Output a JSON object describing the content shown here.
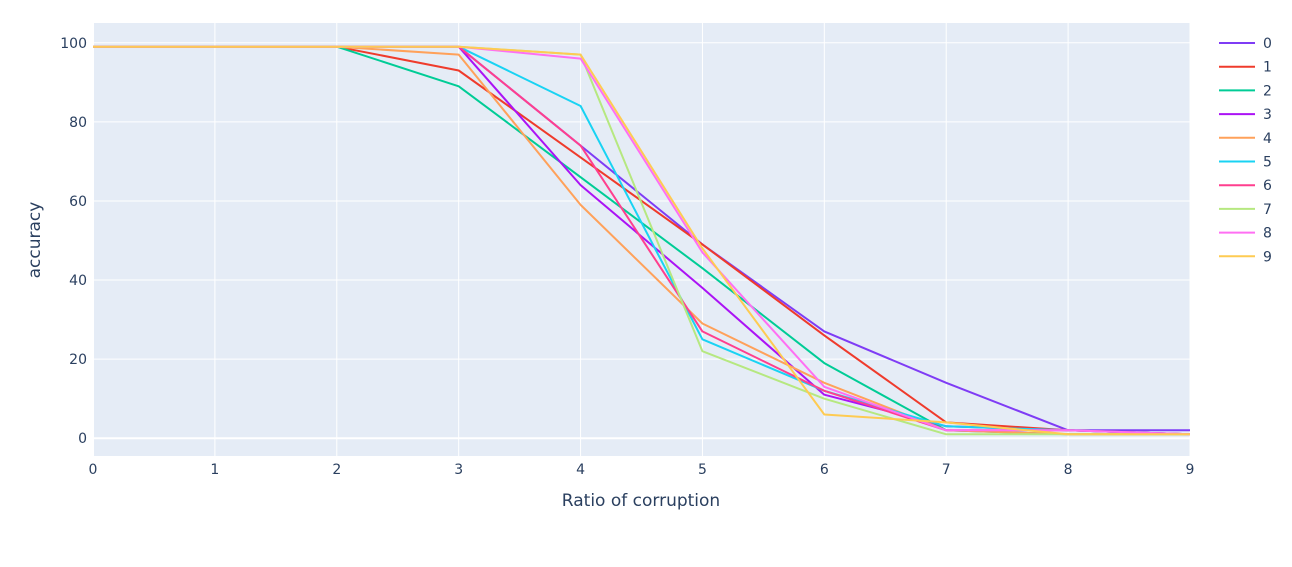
{
  "chart_data": {
    "type": "line",
    "xlabel": "Ratio of corruption",
    "ylabel": "accuracy",
    "xlim": [
      0,
      9
    ],
    "ylim": [
      -4.5,
      105
    ],
    "x_ticks": [
      0,
      1,
      2,
      3,
      4,
      5,
      6,
      7,
      8,
      9
    ],
    "y_ticks": [
      0,
      20,
      40,
      60,
      80,
      100
    ],
    "grid": true,
    "legend_position": "right",
    "background": "#e5ecf6",
    "x": [
      0,
      1,
      2,
      3,
      4,
      5,
      6,
      7,
      8,
      9
    ],
    "series": [
      {
        "name": "0",
        "color": "#7f3cf5",
        "values": [
          99,
          99,
          99,
          99,
          74,
          49,
          27,
          14,
          2,
          2
        ]
      },
      {
        "name": "1",
        "color": "#ef3b2c",
        "values": [
          99,
          99,
          99,
          93,
          71,
          49,
          26,
          4,
          2,
          1
        ]
      },
      {
        "name": "2",
        "color": "#00cc96",
        "values": [
          99,
          99,
          99,
          89,
          66,
          43,
          19,
          2,
          1,
          1
        ]
      },
      {
        "name": "3",
        "color": "#ab13f5",
        "values": [
          99,
          99,
          99,
          99,
          64,
          38,
          11,
          3,
          2,
          1
        ]
      },
      {
        "name": "4",
        "color": "#ffa15a",
        "values": [
          99,
          99,
          99,
          97,
          59,
          29,
          14,
          2,
          1,
          1
        ]
      },
      {
        "name": "5",
        "color": "#19d3f3",
        "values": [
          99,
          99,
          99,
          99,
          84,
          25,
          12,
          3,
          2,
          1
        ]
      },
      {
        "name": "6",
        "color": "#ff3f8e",
        "values": [
          99,
          99,
          99,
          99,
          74,
          27,
          12,
          2,
          2,
          1
        ]
      },
      {
        "name": "7",
        "color": "#b6e880",
        "values": [
          99,
          99,
          99,
          99,
          97,
          22,
          10,
          1,
          1,
          1
        ]
      },
      {
        "name": "8",
        "color": "#ff6ff3",
        "values": [
          99,
          99,
          99,
          99,
          96,
          47,
          13,
          2,
          2,
          1
        ]
      },
      {
        "name": "9",
        "color": "#fecb52",
        "values": [
          99,
          99,
          99,
          99,
          97,
          48,
          6,
          4,
          1,
          1
        ]
      }
    ]
  }
}
